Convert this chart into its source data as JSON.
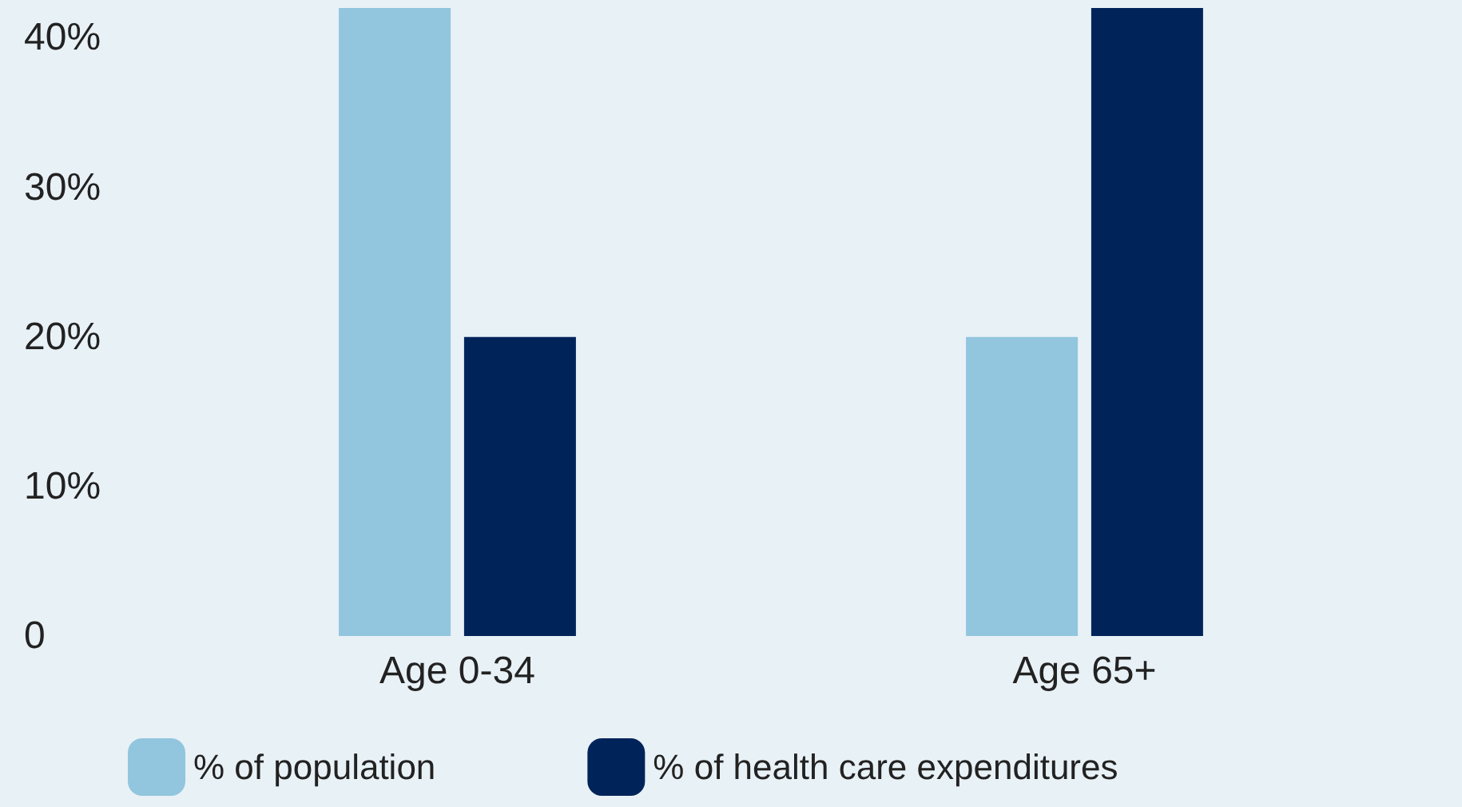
{
  "chart_data": {
    "type": "bar",
    "categories": [
      "Age 0-34",
      "Age 65+"
    ],
    "series": [
      {
        "name": "% of population",
        "color": "#92c5de",
        "values": [
          42,
          20
        ]
      },
      {
        "name": "% of health care expenditures",
        "color": "#00245a",
        "values": [
          20,
          42
        ]
      }
    ],
    "ylim": [
      0,
      42
    ],
    "yticks": [
      {
        "value": 0,
        "label": "0"
      },
      {
        "value": 10,
        "label": "10%"
      },
      {
        "value": 20,
        "label": "20%"
      },
      {
        "value": 30,
        "label": "30%"
      },
      {
        "value": 40,
        "label": "40%"
      }
    ],
    "grid": false,
    "legend": "bottom left"
  }
}
